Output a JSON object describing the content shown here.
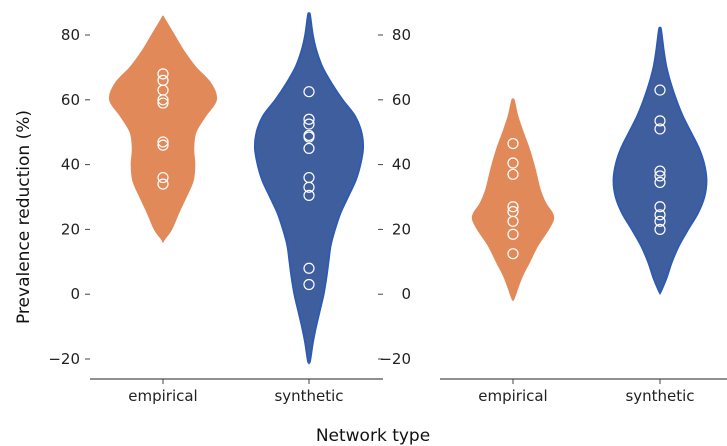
{
  "chart_data": {
    "type": "violin",
    "ylabel": "Prevalence reduction (%)",
    "xlabel": "Network type",
    "ylim": [
      -26,
      86
    ],
    "yticks": [
      -20,
      0,
      20,
      40,
      60,
      80
    ],
    "yticklabels": [
      "−20",
      "0",
      "20",
      "40",
      "60",
      "80"
    ],
    "categories": [
      "empirical",
      "synthetic"
    ],
    "grid": false,
    "colors": {
      "empirical": "#E2895A",
      "synthetic": "#3F5E9E",
      "synthetic_edge": "#2E5BB0",
      "points": "#ffffff"
    },
    "panels": [
      {
        "violins": [
          {
            "category": "empirical",
            "points": [
              34,
              36,
              46,
              47,
              59,
              60,
              63,
              66,
              68
            ],
            "profile": [
              [
                17,
                0.02
              ],
              [
                20,
                0.15
              ],
              [
                25,
                0.28
              ],
              [
                30,
                0.42
              ],
              [
                35,
                0.55
              ],
              [
                40,
                0.58
              ],
              [
                45,
                0.56
              ],
              [
                50,
                0.6
              ],
              [
                55,
                0.78
              ],
              [
                60,
                0.98
              ],
              [
                65,
                0.88
              ],
              [
                70,
                0.6
              ],
              [
                75,
                0.38
              ],
              [
                80,
                0.2
              ],
              [
                85,
                0.02
              ]
            ]
          },
          {
            "category": "synthetic",
            "points": [
              3,
              8,
              30.5,
              33,
              36,
              45,
              48.5,
              49,
              52.5,
              54,
              62.5
            ],
            "profile": [
              [
                -20.5,
                0.02
              ],
              [
                -15,
                0.07
              ],
              [
                -10,
                0.13
              ],
              [
                -5,
                0.2
              ],
              [
                0,
                0.27
              ],
              [
                5,
                0.32
              ],
              [
                10,
                0.36
              ],
              [
                15,
                0.4
              ],
              [
                20,
                0.48
              ],
              [
                25,
                0.58
              ],
              [
                30,
                0.72
              ],
              [
                35,
                0.86
              ],
              [
                40,
                0.95
              ],
              [
                45,
                1.0
              ],
              [
                50,
                0.97
              ],
              [
                55,
                0.85
              ],
              [
                60,
                0.62
              ],
              [
                65,
                0.42
              ],
              [
                70,
                0.25
              ],
              [
                75,
                0.14
              ],
              [
                80,
                0.07
              ],
              [
                86,
                0.02
              ]
            ]
          }
        ]
      },
      {
        "violins": [
          {
            "category": "empirical",
            "points": [
              12.5,
              18.5,
              22.5,
              25.5,
              27,
              37,
              40.5,
              46.5
            ],
            "profile": [
              [
                -1,
                0.02
              ],
              [
                5,
                0.15
              ],
              [
                10,
                0.3
              ],
              [
                15,
                0.45
              ],
              [
                20,
                0.65
              ],
              [
                23,
                0.74
              ],
              [
                25,
                0.72
              ],
              [
                28,
                0.6
              ],
              [
                32,
                0.5
              ],
              [
                36,
                0.44
              ],
              [
                40,
                0.38
              ],
              [
                45,
                0.29
              ],
              [
                50,
                0.18
              ],
              [
                55,
                0.08
              ],
              [
                59.5,
                0.02
              ]
            ]
          },
          {
            "category": "synthetic",
            "points": [
              20,
              22.5,
              24.5,
              27,
              34.5,
              36.5,
              38,
              51,
              53.5,
              63
            ],
            "profile": [
              [
                1,
                0.02
              ],
              [
                5,
                0.12
              ],
              [
                10,
                0.22
              ],
              [
                15,
                0.35
              ],
              [
                20,
                0.52
              ],
              [
                25,
                0.7
              ],
              [
                30,
                0.82
              ],
              [
                35,
                0.86
              ],
              [
                40,
                0.82
              ],
              [
                45,
                0.72
              ],
              [
                50,
                0.57
              ],
              [
                55,
                0.42
              ],
              [
                60,
                0.3
              ],
              [
                65,
                0.2
              ],
              [
                70,
                0.12
              ],
              [
                75,
                0.07
              ],
              [
                81.5,
                0.02
              ]
            ]
          }
        ]
      }
    ]
  }
}
